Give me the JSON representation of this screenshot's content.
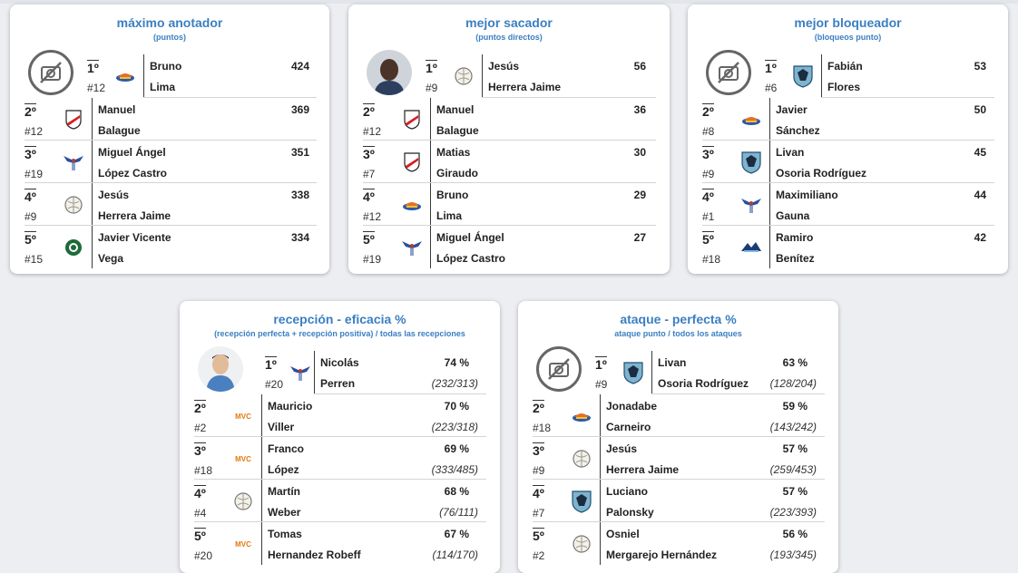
{
  "cards": [
    {
      "title": "máximo anotador",
      "subtitle": "(puntos)",
      "rows": [
        {
          "rank": "1º",
          "num": "#12",
          "first": "Bruno",
          "last": "Lima",
          "value": "424",
          "logo": "bolivar-logo"
        },
        {
          "rank": "2º",
          "num": "#12",
          "first": "Manuel",
          "last": "Balague",
          "value": "369",
          "logo": "river-plate-logo"
        },
        {
          "rank": "3º",
          "num": "#19",
          "first": "Miguel Ángel",
          "last": "López Castro",
          "value": "351",
          "logo": "eagle-logo"
        },
        {
          "rank": "4º",
          "num": "#9",
          "first": "Jesús",
          "last": "Herrera Jaime",
          "value": "338",
          "logo": "ball-logo"
        },
        {
          "rank": "5º",
          "num": "#15",
          "first": "Javier Vicente",
          "last": "Vega",
          "value": "334",
          "logo": "green-logo"
        }
      ]
    },
    {
      "title": "mejor sacador",
      "subtitle": "(puntos directos)",
      "rows": [
        {
          "rank": "1º",
          "num": "#9",
          "first": "Jesús",
          "last": "Herrera Jaime",
          "value": "56",
          "logo": "ball-logo"
        },
        {
          "rank": "2º",
          "num": "#12",
          "first": "Manuel",
          "last": "Balague",
          "value": "36",
          "logo": "river-plate-logo"
        },
        {
          "rank": "3º",
          "num": "#7",
          "first": "Matias",
          "last": "Giraudo",
          "value": "30",
          "logo": "river-plate-logo"
        },
        {
          "rank": "4º",
          "num": "#12",
          "first": "Bruno",
          "last": "Lima",
          "value": "29",
          "logo": "bolivar-logo"
        },
        {
          "rank": "5º",
          "num": "#19",
          "first": "Miguel Ángel",
          "last": "López Castro",
          "value": "27",
          "logo": "eagle-logo"
        }
      ]
    },
    {
      "title": "mejor bloqueador",
      "subtitle": "(bloqueos punto)",
      "rows": [
        {
          "rank": "1º",
          "num": "#6",
          "first": "Fabián",
          "last": "Flores",
          "value": "53",
          "logo": "shield-blue-logo"
        },
        {
          "rank": "2º",
          "num": "#8",
          "first": "Javier",
          "last": "Sánchez",
          "value": "50",
          "logo": "bolivar-logo"
        },
        {
          "rank": "3º",
          "num": "#9",
          "first": "Livan",
          "last": "Osoria Rodríguez",
          "value": "45",
          "logo": "shield-blue-logo"
        },
        {
          "rank": "4º",
          "num": "#1",
          "first": "Maximiliano",
          "last": "Gauna",
          "value": "44",
          "logo": "eagle-logo"
        },
        {
          "rank": "5º",
          "num": "#18",
          "first": "Ramiro",
          "last": "Benítez",
          "value": "42",
          "logo": "wing-logo"
        }
      ]
    },
    {
      "title": "recepción - eficacia %",
      "subtitle": "(recepción perfecta + recepción positiva) / todas las recepciones",
      "rows": [
        {
          "rank": "1º",
          "num": "#20",
          "first": "Nicolás",
          "last": "Perren",
          "value": "74 %",
          "ratio": "(232/313)",
          "logo": "eagle-logo"
        },
        {
          "rank": "2º",
          "num": "#2",
          "first": "Mauricio",
          "last": "Viller",
          "value": "70 %",
          "ratio": "(223/318)",
          "logo": "mvc-logo"
        },
        {
          "rank": "3º",
          "num": "#18",
          "first": "Franco",
          "last": "López",
          "value": "69 %",
          "ratio": "(333/485)",
          "logo": "mvc-logo"
        },
        {
          "rank": "4º",
          "num": "#4",
          "first": "Martín",
          "last": "Weber",
          "value": "68 %",
          "ratio": "(76/111)",
          "logo": "ball-logo"
        },
        {
          "rank": "5º",
          "num": "#20",
          "first": "Tomas",
          "last": "Hernandez Robeff",
          "value": "67 %",
          "ratio": "(114/170)",
          "logo": "mvc-logo"
        }
      ]
    },
    {
      "title": "ataque - perfecta %",
      "subtitle": "ataque punto / todos los ataques",
      "rows": [
        {
          "rank": "1º",
          "num": "#9",
          "first": "Livan",
          "last": "Osoria Rodríguez",
          "value": "63 %",
          "ratio": "(128/204)",
          "logo": "shield-blue-logo"
        },
        {
          "rank": "2º",
          "num": "#18",
          "first": "Jonadabe",
          "last": "Carneiro",
          "value": "59 %",
          "ratio": "(143/242)",
          "logo": "bolivar-logo"
        },
        {
          "rank": "3º",
          "num": "#9",
          "first": "Jesús",
          "last": "Herrera Jaime",
          "value": "57 %",
          "ratio": "(259/453)",
          "logo": "ball-logo"
        },
        {
          "rank": "4º",
          "num": "#7",
          "first": "Luciano",
          "last": "Palonsky",
          "value": "57 %",
          "ratio": "(223/393)",
          "logo": "shield-blue-logo"
        },
        {
          "rank": "5º",
          "num": "#2",
          "first": "Osniel",
          "last": "Mergarejo Hernández",
          "value": "56 %",
          "ratio": "(193/345)",
          "logo": "ball-logo"
        }
      ]
    }
  ],
  "logos": {
    "mvc_text": "MVC"
  },
  "colors": {
    "title": "#3b7fc2"
  }
}
